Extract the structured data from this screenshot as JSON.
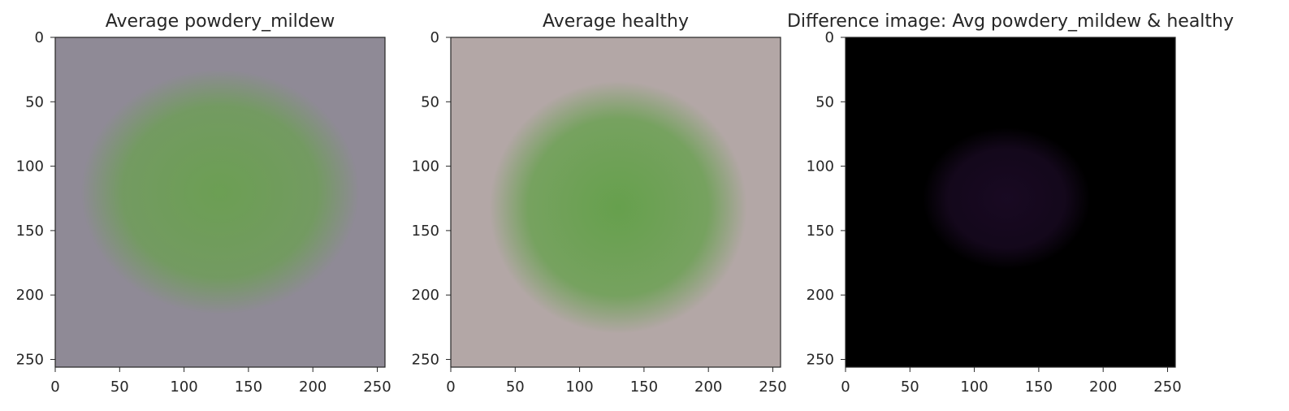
{
  "chart_data": [
    {
      "type": "image",
      "title": "Average powdery_mildew",
      "xlabel": "",
      "ylabel": "",
      "xlim": [
        0,
        256
      ],
      "ylim": [
        256,
        0
      ],
      "x_ticks": [
        0,
        50,
        100,
        150,
        200,
        250
      ],
      "y_ticks": [
        0,
        50,
        100,
        150,
        200,
        250
      ],
      "grid": false,
      "image_content": {
        "background_color": "#8f8a96",
        "blob_color": "#6aa050",
        "blob_center": [
          128,
          120
        ],
        "blob_radius": [
          108,
          95
        ]
      }
    },
    {
      "type": "image",
      "title": "Average healthy",
      "xlabel": "",
      "ylabel": "",
      "xlim": [
        0,
        256
      ],
      "ylim": [
        256,
        0
      ],
      "x_ticks": [
        0,
        50,
        100,
        150,
        200,
        250
      ],
      "y_ticks": [
        0,
        50,
        100,
        150,
        200,
        250
      ],
      "grid": false,
      "image_content": {
        "background_color": "#b3a7a6",
        "blob_color": "#62a048",
        "blob_center": [
          130,
          132
        ],
        "blob_radius": [
          100,
          98
        ]
      }
    },
    {
      "type": "image",
      "title": "Difference image: Avg powdery_mildew & healthy",
      "xlabel": "",
      "ylabel": "",
      "xlim": [
        0,
        256
      ],
      "ylim": [
        256,
        0
      ],
      "x_ticks": [
        0,
        50,
        100,
        150,
        200,
        250
      ],
      "y_ticks": [
        0,
        50,
        100,
        150,
        200,
        250
      ],
      "grid": false,
      "image_content": {
        "background_color": "#000000",
        "blob_color": "#1a0a24",
        "blob_center": [
          125,
          125
        ],
        "blob_radius": [
          65,
          55
        ]
      }
    }
  ]
}
